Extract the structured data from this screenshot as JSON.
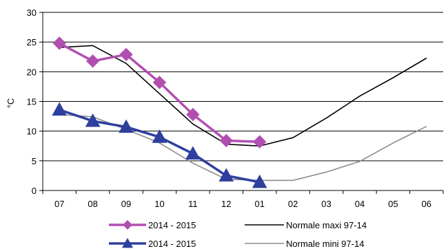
{
  "chart_data": {
    "type": "line",
    "title": "",
    "xlabel": "",
    "ylabel": "°C",
    "ylim": [
      0,
      30
    ],
    "yticks": [
      0,
      5,
      10,
      15,
      20,
      25,
      30
    ],
    "grid": "horizontal",
    "categories": [
      "07",
      "08",
      "09",
      "10",
      "11",
      "12",
      "01",
      "02",
      "03",
      "04",
      "05",
      "06"
    ],
    "legend_position": "bottom",
    "series": [
      {
        "name": "2014 - 2015",
        "color": "#b14fb1",
        "marker": "diamond",
        "values": [
          24.8,
          21.8,
          22.9,
          18.2,
          12.8,
          8.4,
          8.2,
          null,
          null,
          null,
          null,
          null
        ]
      },
      {
        "name": "2014 - 2015",
        "color": "#2e3f9e",
        "marker": "triangle",
        "values": [
          13.6,
          11.7,
          10.7,
          9.0,
          6.2,
          2.5,
          1.4,
          null,
          null,
          null,
          null,
          null
        ]
      },
      {
        "name": "Normale maxi 97-14",
        "color": "#000000",
        "marker": "none",
        "values": [
          24.1,
          24.4,
          21.4,
          16.3,
          11.2,
          7.8,
          7.5,
          8.9,
          12.2,
          15.9,
          19.0,
          22.3
        ]
      },
      {
        "name": "Normale mini 97-14",
        "color": "#8c8c8c",
        "marker": "none",
        "values": [
          12.8,
          12.4,
          10.3,
          8.0,
          4.6,
          1.9,
          1.7,
          1.7,
          3.1,
          4.9,
          8.0,
          10.8
        ]
      }
    ]
  }
}
